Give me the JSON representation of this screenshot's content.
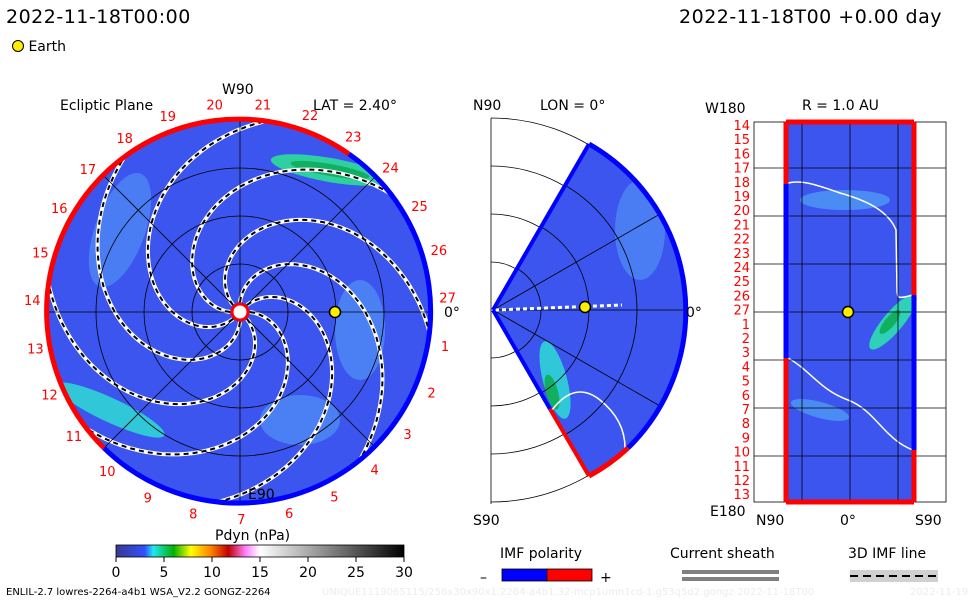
{
  "header": {
    "left_datetime": "2022-11-18T00:00",
    "right_datetime": "2022-11-18T00 +0.00 day",
    "legend_earth": "Earth"
  },
  "colors": {
    "earth": "#ffee00",
    "positive": "#ff0000",
    "negative": "#0000ff",
    "background_field": "#3b55ee"
  },
  "chart_data": [
    {
      "type": "heatmap",
      "title": "Ecliptic Plane",
      "top_label": "W90",
      "bottom_label": "E90",
      "right_label": "0°",
      "lat_label": "LAT = 2.40°",
      "rim_labels": [
        "20",
        "21",
        "22",
        "23",
        "24",
        "25",
        "26",
        "27",
        "1",
        "2",
        "3",
        "4",
        "5",
        "6",
        "7",
        "8",
        "9",
        "10",
        "11",
        "12",
        "13",
        "14",
        "15",
        "16",
        "17",
        "18",
        "19"
      ]
    },
    {
      "type": "heatmap",
      "title": "LON = 0°",
      "top_label": "N90",
      "bottom_label": "S90",
      "right_label": "0°"
    },
    {
      "type": "heatmap",
      "title": "R = 1.0 AU",
      "top_label": "W180",
      "bottom_label": "E180",
      "x_tick_labels": [
        "N90",
        "0°",
        "S90"
      ],
      "y_tick_labels": [
        "14",
        "15",
        "16",
        "17",
        "18",
        "19",
        "20",
        "21",
        "22",
        "23",
        "24",
        "25",
        "26",
        "27",
        "1",
        "2",
        "3",
        "4",
        "5",
        "6",
        "7",
        "8",
        "9",
        "10",
        "11",
        "12",
        "13"
      ]
    }
  ],
  "colorbar": {
    "title": "Pdyn (nPa)",
    "ticks": [
      "0",
      "5",
      "10",
      "15",
      "20",
      "25",
      "30"
    ],
    "range": [
      0,
      30
    ]
  },
  "legend": {
    "imf_polarity": "IMF polarity",
    "minus": "–",
    "plus": "+",
    "current_sheath": "Current sheath",
    "imf_line": "3D IMF line"
  },
  "footer": {
    "model": "ENLIL-2.7 lowres-2264-a4b1 WSA_V2.2 GONGZ-2264",
    "unique_id": "UNIQUE1119065115/256x30x90x1.2264-a4b1.32-mcp1umn1cd-1.g53q5d2.gongz-2022-11-18T00",
    "run_date": "2022-11-19"
  }
}
